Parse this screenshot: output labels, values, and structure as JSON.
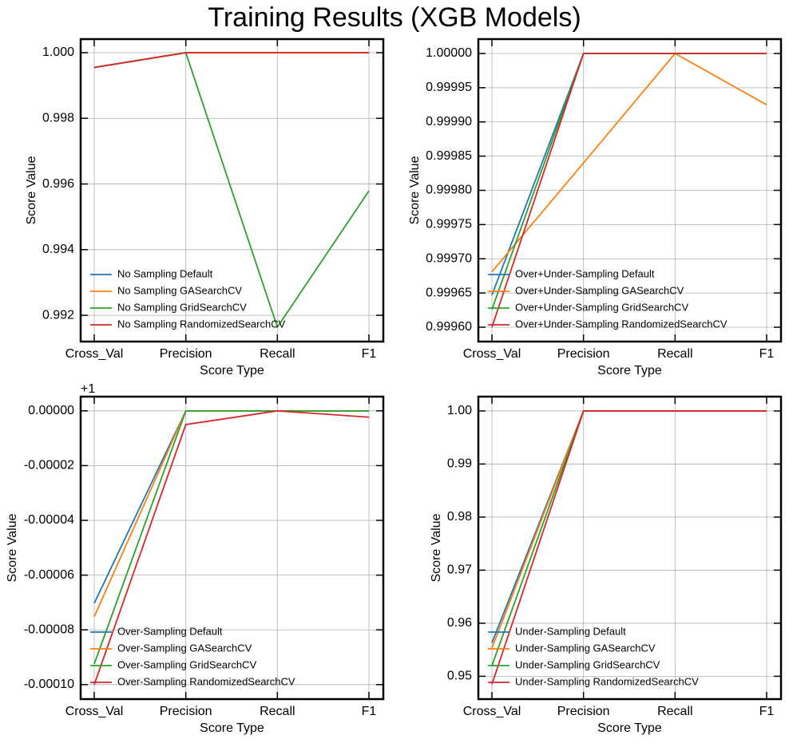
{
  "title": "Training Results (XGB Models)",
  "chart_data": [
    {
      "type": "line",
      "xlabel": "Score Type",
      "ylabel": "Score Value",
      "categories": [
        "Cross_Val",
        "Precision",
        "Recall",
        "F1"
      ],
      "ylim": [
        0.9912,
        1.000413
      ],
      "yticks": [
        0.992,
        0.994,
        0.996,
        0.998,
        {
          "value": 1,
          "label": "1.000"
        }
      ],
      "grid": true,
      "legend": "lower left",
      "series": [
        {
          "name": "No Sampling Default",
          "color": "#1f77b4",
          "values": [
            0.99955,
            1,
            1,
            1
          ]
        },
        {
          "name": "No Sampling GASearchCV",
          "color": "#ff7f0e",
          "values": [
            0.99955,
            1,
            1,
            1
          ]
        },
        {
          "name": "No Sampling GridSearchCV",
          "color": "#2ca02c",
          "values": [
            0.99955,
            1,
            0.99164,
            0.99579
          ]
        },
        {
          "name": "No Sampling RandomizedSearchCV",
          "color": "#d62728",
          "values": [
            0.99955,
            1,
            1,
            1
          ]
        }
      ]
    },
    {
      "type": "line",
      "xlabel": "Score Type",
      "ylabel": "Score Value",
      "categories": [
        "Cross_Val",
        "Precision",
        "Recall",
        "F1"
      ],
      "ylim": [
        0.999579,
        1.000021
      ],
      "yticks": [
        {
          "value": 0.9996,
          "label": "0.99960"
        },
        {
          "value": 0.99965,
          "label": "0.99965"
        },
        {
          "value": 0.9997,
          "label": "0.99970"
        },
        {
          "value": 0.99975,
          "label": "0.99975"
        },
        {
          "value": 0.9998,
          "label": "0.99980"
        },
        {
          "value": 0.99985,
          "label": "0.99985"
        },
        {
          "value": 0.9999,
          "label": "0.99990"
        },
        {
          "value": 0.99995,
          "label": "0.99995"
        },
        {
          "value": 1,
          "label": "1.00000"
        }
      ],
      "grid": true,
      "legend": "lower left",
      "series": [
        {
          "name": "Over+Under-Sampling Default",
          "color": "#1f77b4",
          "values": [
            0.999647,
            1,
            1,
            1
          ]
        },
        {
          "name": "Over+Under-Sampling GASearchCV",
          "color": "#ff7f0e",
          "values": [
            0.999681,
            0.99984,
            1,
            0.999925
          ]
        },
        {
          "name": "Over+Under-Sampling GridSearchCV",
          "color": "#2ca02c",
          "values": [
            0.999626,
            1,
            1,
            1
          ]
        },
        {
          "name": "Over+Under-Sampling RandomizedSearchCV",
          "color": "#d62728",
          "values": [
            0.9996,
            1,
            1,
            1
          ]
        }
      ]
    },
    {
      "type": "line",
      "xlabel": "Score Type",
      "ylabel": "Score Value",
      "y_offset_label": "+1",
      "categories": [
        "Cross_Val",
        "Precision",
        "Recall",
        "F1"
      ],
      "ylim": [
        -0.0001053,
        5.2e-06
      ],
      "yticks": [
        {
          "value": -0.0001,
          "label": "-0.00010"
        },
        {
          "value": -8e-05,
          "label": "-0.00008"
        },
        {
          "value": -6e-05,
          "label": "-0.00006"
        },
        {
          "value": -4e-05,
          "label": "-0.00004"
        },
        {
          "value": -2e-05,
          "label": "-0.00002"
        },
        {
          "value": 0,
          "label": "0.00000"
        }
      ],
      "grid": true,
      "legend": "lower left",
      "series": [
        {
          "name": "Over-Sampling Default",
          "color": "#1f77b4",
          "values": [
            -7.03e-05,
            0,
            0,
            0
          ]
        },
        {
          "name": "Over-Sampling GASearchCV",
          "color": "#ff7f0e",
          "values": [
            -7.52e-05,
            0,
            0,
            0
          ]
        },
        {
          "name": "Over-Sampling GridSearchCV",
          "color": "#2ca02c",
          "values": [
            -9.25e-05,
            0,
            0,
            0
          ]
        },
        {
          "name": "Over-Sampling RandomizedSearchCV",
          "color": "#d62728",
          "values": [
            -0.0001,
            -5e-06,
            0,
            -2.3e-06
          ]
        }
      ]
    },
    {
      "type": "line",
      "xlabel": "Score Type",
      "ylabel": "Score Value",
      "categories": [
        "Cross_Val",
        "Precision",
        "Recall",
        "F1"
      ],
      "ylim": [
        0.9457,
        1.0027
      ],
      "yticks": [
        0.95,
        0.96,
        0.97,
        0.98,
        0.99,
        {
          "value": 1,
          "label": "1.00"
        }
      ],
      "grid": true,
      "legend": "lower left",
      "series": [
        {
          "name": "Under-Sampling Default",
          "color": "#1f77b4",
          "values": [
            0.9563,
            1,
            1,
            1
          ]
        },
        {
          "name": "Under-Sampling GASearchCV",
          "color": "#ff7f0e",
          "values": [
            0.9553,
            1,
            1,
            1
          ]
        },
        {
          "name": "Under-Sampling GridSearchCV",
          "color": "#2ca02c",
          "values": [
            0.952,
            1,
            1,
            1
          ]
        },
        {
          "name": "Under-Sampling RandomizedSearchCV",
          "color": "#d62728",
          "values": [
            0.9485,
            1,
            1,
            1
          ]
        }
      ]
    }
  ]
}
